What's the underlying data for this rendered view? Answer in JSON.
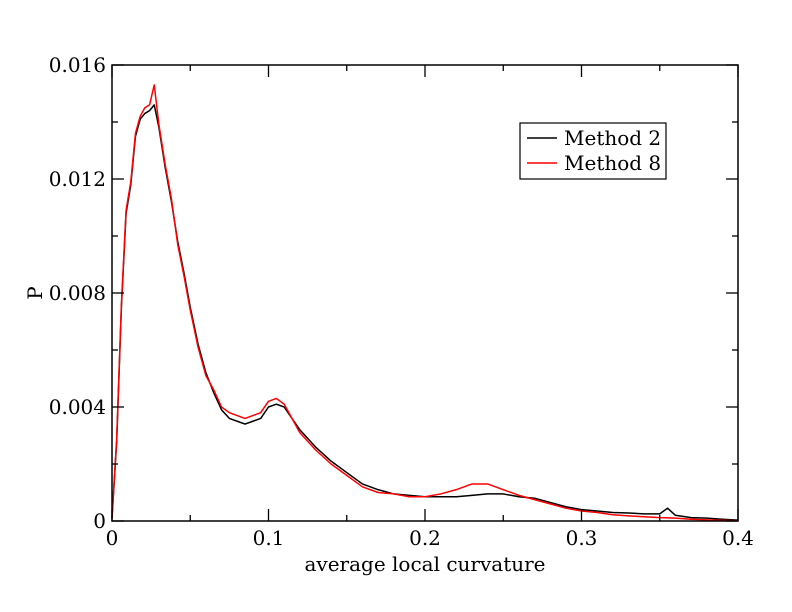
{
  "chart_data": {
    "type": "line",
    "title": "",
    "xlabel": "average local curvature",
    "ylabel": "P",
    "xlim": [
      0,
      0.4
    ],
    "ylim": [
      0,
      0.016
    ],
    "x_ticks": [
      "0",
      "0.1",
      "0.2",
      "0.3",
      "0.4"
    ],
    "x_tick_values": [
      0,
      0.1,
      0.2,
      0.3,
      0.4
    ],
    "y_ticks": [
      "0",
      "0.004",
      "0.008",
      "0.012",
      "0.016"
    ],
    "y_tick_values": [
      0,
      0.004,
      0.008,
      0.012,
      0.016
    ],
    "grid": false,
    "legend_position": "top-right",
    "series": [
      {
        "name": "Method 2",
        "color": "#000000",
        "x": [
          0,
          0.003,
          0.006,
          0.009,
          0.012,
          0.015,
          0.018,
          0.021,
          0.024,
          0.027,
          0.03,
          0.034,
          0.038,
          0.042,
          0.046,
          0.05,
          0.055,
          0.06,
          0.065,
          0.07,
          0.075,
          0.08,
          0.085,
          0.09,
          0.095,
          0.1,
          0.105,
          0.11,
          0.115,
          0.12,
          0.13,
          0.14,
          0.15,
          0.16,
          0.17,
          0.18,
          0.19,
          0.2,
          0.21,
          0.22,
          0.23,
          0.24,
          0.25,
          0.26,
          0.27,
          0.28,
          0.29,
          0.3,
          0.31,
          0.32,
          0.33,
          0.34,
          0.35,
          0.355,
          0.36,
          0.37,
          0.38,
          0.39,
          0.4
        ],
        "y": [
          0.0001,
          0.0028,
          0.0075,
          0.0108,
          0.0118,
          0.0135,
          0.0141,
          0.0143,
          0.0144,
          0.0146,
          0.0138,
          0.0124,
          0.0112,
          0.0098,
          0.0087,
          0.0075,
          0.0062,
          0.0052,
          0.0045,
          0.0039,
          0.0036,
          0.0035,
          0.0034,
          0.0035,
          0.0036,
          0.004,
          0.0041,
          0.004,
          0.0036,
          0.0032,
          0.0026,
          0.0021,
          0.0017,
          0.0013,
          0.0011,
          0.00095,
          0.0009,
          0.00085,
          0.00085,
          0.00085,
          0.0009,
          0.00095,
          0.00095,
          0.00085,
          0.0008,
          0.00065,
          0.0005,
          0.0004,
          0.00035,
          0.0003,
          0.00028,
          0.00025,
          0.00025,
          0.00045,
          0.0002,
          0.00012,
          0.0001,
          6e-05,
          3e-05
        ]
      },
      {
        "name": "Method 8",
        "color": "#ff0000",
        "x": [
          0,
          0.003,
          0.006,
          0.009,
          0.012,
          0.015,
          0.018,
          0.021,
          0.024,
          0.027,
          0.03,
          0.034,
          0.038,
          0.042,
          0.046,
          0.05,
          0.055,
          0.06,
          0.065,
          0.07,
          0.075,
          0.08,
          0.085,
          0.09,
          0.095,
          0.1,
          0.105,
          0.11,
          0.115,
          0.12,
          0.13,
          0.14,
          0.15,
          0.16,
          0.17,
          0.18,
          0.19,
          0.2,
          0.21,
          0.22,
          0.23,
          0.24,
          0.25,
          0.26,
          0.27,
          0.28,
          0.29,
          0.3,
          0.31,
          0.32,
          0.33,
          0.34,
          0.35,
          0.36,
          0.37,
          0.38,
          0.39,
          0.4
        ],
        "y": [
          0.0001,
          0.0029,
          0.0076,
          0.0109,
          0.0119,
          0.0136,
          0.0142,
          0.0145,
          0.0146,
          0.0153,
          0.0139,
          0.0125,
          0.0113,
          0.0097,
          0.0086,
          0.0074,
          0.0061,
          0.0051,
          0.0046,
          0.004,
          0.0038,
          0.0037,
          0.0036,
          0.0037,
          0.0038,
          0.0042,
          0.0043,
          0.0041,
          0.0036,
          0.0031,
          0.0025,
          0.002,
          0.0016,
          0.0012,
          0.001,
          0.00095,
          0.00085,
          0.00085,
          0.00095,
          0.0011,
          0.0013,
          0.0013,
          0.0011,
          0.0009,
          0.00075,
          0.0006,
          0.00045,
          0.00035,
          0.0003,
          0.00022,
          0.00018,
          0.00015,
          0.00012,
          0.0001,
          6e-05,
          4e-05,
          2e-05,
          1e-05
        ]
      }
    ]
  }
}
